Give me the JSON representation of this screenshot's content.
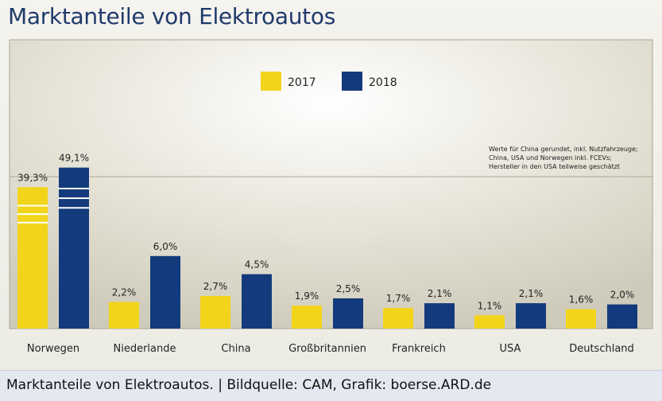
{
  "header": {
    "title": "Marktanteile von Elektroautos"
  },
  "caption": "Marktanteile von Elektroautos. | Bildquelle: CAM, Grafik: boerse.ARD.de",
  "chart_data": {
    "type": "bar",
    "title": "Marktanteile von Elektroautos",
    "categories": [
      "Norwegen",
      "Niederlande",
      "China",
      "Großbritannien",
      "Frankreich",
      "USA",
      "Deutschland"
    ],
    "series": [
      {
        "name": "2017",
        "color": "#f2d41a",
        "values": [
          39.3,
          2.2,
          2.7,
          1.9,
          1.7,
          1.1,
          1.6
        ],
        "labels": [
          "39,3%",
          "2,2%",
          "2,7%",
          "1,9%",
          "1,7%",
          "1,1%",
          "1,6%"
        ]
      },
      {
        "name": "2018",
        "color": "#133a7c",
        "values": [
          49.1,
          6.0,
          4.5,
          2.5,
          2.1,
          2.1,
          2.0
        ],
        "labels": [
          "49,1%",
          "6,0%",
          "4,5%",
          "2,5%",
          "2,1%",
          "2,1%",
          "2,0%"
        ]
      }
    ],
    "scale": "axis break: the upper part of the axis is compressed (two tall Norwegen bars shown with break marks)",
    "note_lines": [
      "Werte für China gerundet, inkl. Nutzfahrzeuge;",
      "China, USA und Norwegen inkl. FCEVs;",
      "Hersteller in den USA teilweise geschätzt"
    ],
    "legend_position": "top-center",
    "grid": false
  }
}
